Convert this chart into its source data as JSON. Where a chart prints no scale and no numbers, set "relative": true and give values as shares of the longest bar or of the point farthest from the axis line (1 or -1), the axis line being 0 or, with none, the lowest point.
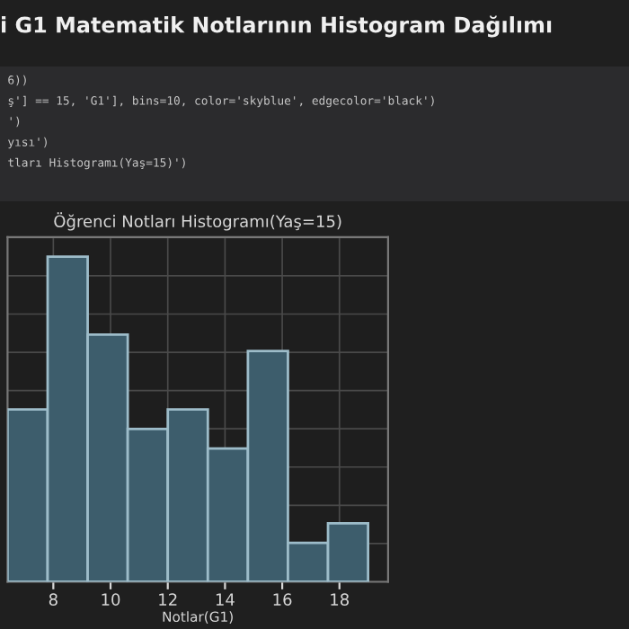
{
  "chart_data": {
    "type": "bar",
    "title": "Öğrenci Notları Histogramı(Yaş=15)",
    "xlabel": "Notlar(G1)",
    "annotations": [
      "i G1 Matematik Notlarının Histogram Dağılımı",
      "6))",
      "ş'] == 15, 'G1'], bins=10, color='skyblue', edgecolor='black')",
      "')",
      "yısı')",
      "tları Histogramı(Yaş=15)')"
    ],
    "x": [
      7.1,
      8.5,
      9.9,
      11.3,
      12.7,
      14.1,
      15.5,
      16.9,
      18.3
    ],
    "values": [
      0.53,
      1,
      0.76,
      0.47,
      0.53,
      0.41,
      0.71,
      0.12,
      0.18
    ],
    "relative": true,
    "color": "#3d5d6c",
    "xlim": [
      6.4,
      19.7
    ],
    "xticks": [
      8,
      10,
      12,
      14,
      16,
      18
    ],
    "grid": true,
    "tick_labels": "x"
  }
}
